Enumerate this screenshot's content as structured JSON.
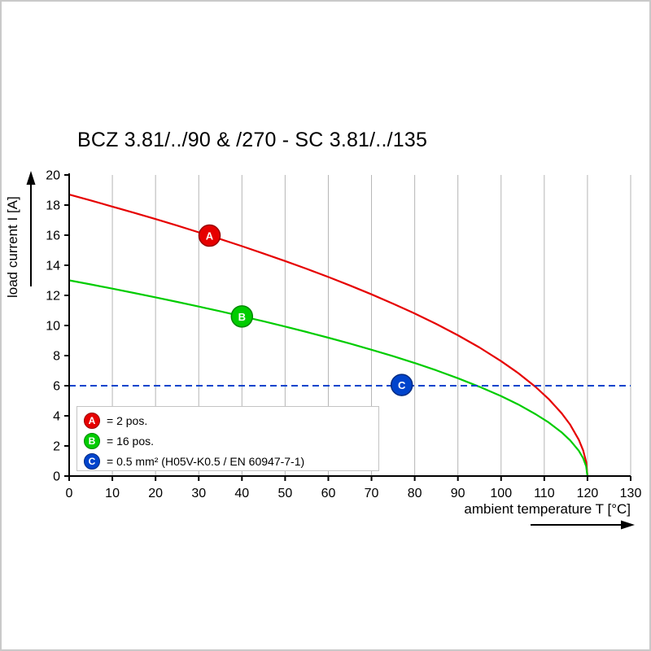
{
  "page": {
    "background": "#ffffff",
    "frame_color": "#c9c9c9"
  },
  "chart_data": {
    "type": "line",
    "title": "BCZ 3.81/../90 & /270 - SC 3.81/../135",
    "xlabel": "ambient temperature T [°C]",
    "ylabel": "load current I [A]",
    "xlim": [
      0,
      130
    ],
    "ylim": [
      0,
      20
    ],
    "xticks": [
      0,
      10,
      20,
      30,
      40,
      50,
      60,
      70,
      80,
      90,
      100,
      110,
      120,
      130
    ],
    "yticks": [
      0,
      2,
      4,
      6,
      8,
      10,
      12,
      14,
      16,
      18,
      20
    ],
    "grid": {
      "vertical": true,
      "horizontal": false,
      "color": "#b5b5b5"
    },
    "legend_position": "bottom-left-inside",
    "series": [
      {
        "name": "A",
        "label": "2 pos.",
        "color": "#e60000",
        "style": "solid",
        "points": [
          [
            0,
            18.7
          ],
          [
            5,
            18.31
          ],
          [
            10,
            17.9
          ],
          [
            15,
            17.49
          ],
          [
            20,
            17.07
          ],
          [
            25,
            16.64
          ],
          [
            30,
            16.19
          ],
          [
            35,
            15.74
          ],
          [
            40,
            15.27
          ],
          [
            45,
            14.78
          ],
          [
            50,
            14.28
          ],
          [
            55,
            13.76
          ],
          [
            60,
            13.22
          ],
          [
            65,
            12.66
          ],
          [
            70,
            12.07
          ],
          [
            75,
            11.45
          ],
          [
            80,
            10.8
          ],
          [
            85,
            10.1
          ],
          [
            90,
            9.35
          ],
          [
            95,
            8.54
          ],
          [
            100,
            7.63
          ],
          [
            104,
            6.83
          ],
          [
            108,
            5.92
          ],
          [
            111,
            5.12
          ],
          [
            114,
            4.18
          ],
          [
            116,
            3.41
          ],
          [
            118,
            2.41
          ],
          [
            119,
            1.71
          ],
          [
            119.7,
            0.94
          ],
          [
            120,
            0
          ]
        ]
      },
      {
        "name": "B",
        "label": "16 pos.",
        "color": "#00cc00",
        "style": "solid",
        "points": [
          [
            0,
            13
          ],
          [
            5,
            12.73
          ],
          [
            10,
            12.45
          ],
          [
            15,
            12.16
          ],
          [
            20,
            11.87
          ],
          [
            25,
            11.57
          ],
          [
            30,
            11.26
          ],
          [
            35,
            10.94
          ],
          [
            40,
            10.61
          ],
          [
            45,
            10.28
          ],
          [
            50,
            9.93
          ],
          [
            55,
            9.57
          ],
          [
            60,
            9.19
          ],
          [
            65,
            8.8
          ],
          [
            70,
            8.39
          ],
          [
            75,
            7.96
          ],
          [
            80,
            7.51
          ],
          [
            85,
            7.02
          ],
          [
            90,
            6.5
          ],
          [
            95,
            5.93
          ],
          [
            100,
            5.31
          ],
          [
            104,
            4.75
          ],
          [
            108,
            4.11
          ],
          [
            111,
            3.56
          ],
          [
            114,
            2.91
          ],
          [
            116,
            2.37
          ],
          [
            118,
            1.68
          ],
          [
            119,
            1.19
          ],
          [
            119.7,
            0.65
          ],
          [
            120,
            0
          ]
        ]
      },
      {
        "name": "C",
        "label": "0.5 mm² (H05V-K0.5 / EN 60947-7-1)",
        "color": "#0044cc",
        "style": "dashed-horizontal",
        "y": 6,
        "x_range": [
          0,
          130
        ]
      }
    ],
    "markers": [
      {
        "letter": "A",
        "x": 32.5,
        "y": 15.97,
        "fill": "#e60000",
        "stroke": "#990000"
      },
      {
        "letter": "B",
        "x": 40,
        "y": 10.6,
        "fill": "#00cc00",
        "stroke": "#008800"
      },
      {
        "letter": "C",
        "x": 77,
        "y": 6.05,
        "fill": "#0044cc",
        "stroke": "#002a80"
      }
    ],
    "legend": {
      "items": [
        {
          "letter": "A",
          "text": "= 2 pos.",
          "color": "#e60000",
          "border": "#990000"
        },
        {
          "letter": "B",
          "text": "= 16 pos.",
          "color": "#00cc00",
          "border": "#008800"
        },
        {
          "letter": "C",
          "text": "= 0.5 mm² (H05V-K0.5 / EN 60947-7-1)",
          "color": "#0044cc",
          "border": "#002a80"
        }
      ]
    }
  }
}
